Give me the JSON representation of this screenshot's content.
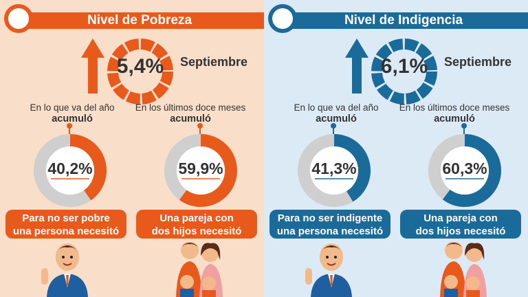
{
  "poverty": {
    "title": "Nivel de Pobreza",
    "month_value": "5,4%",
    "month_label": "Septiembre",
    "ytd_label_line1": "En lo que va del año",
    "ytd_label_line2": "acumuló",
    "ytd_value": "40,2%",
    "ytd_fraction": 0.402,
    "last12_label_line1": "En los últimos doce meses",
    "last12_label_line2": "acumuló",
    "last12_value": "59,9%",
    "last12_fraction": 0.599,
    "pill1_line1": "Para no ser pobre",
    "pill1_line2": "una persona necesitó",
    "pill2_line1": "Una pareja con",
    "pill2_line2": "dos hijos necesitó",
    "accent_color": "#e85a1c",
    "background_color": "#f9dfca"
  },
  "indigence": {
    "title": "Nivel de Indigencia",
    "month_value": "6,1%",
    "month_label": "Septiembre",
    "ytd_label_line1": "En lo que va del año",
    "ytd_label_line2": "acumuló",
    "ytd_value": "41,3%",
    "ytd_fraction": 0.413,
    "last12_label_line1": "En los últimos doce meses",
    "last12_label_line2": "acumuló",
    "last12_value": "60,3%",
    "last12_fraction": 0.603,
    "pill1_line1": "Para no ser indigente",
    "pill1_line2": "una persona necesitó",
    "pill2_line1": "Una pareja con",
    "pill2_line2": "dos hijos necesitó",
    "accent_color": "#1a6a9a",
    "background_color": "#dceaf6"
  },
  "icons": [
    "arrow-up-icon",
    "segmented-ring-icon",
    "donut-chart-icon",
    "person-icon",
    "family-icon"
  ]
}
